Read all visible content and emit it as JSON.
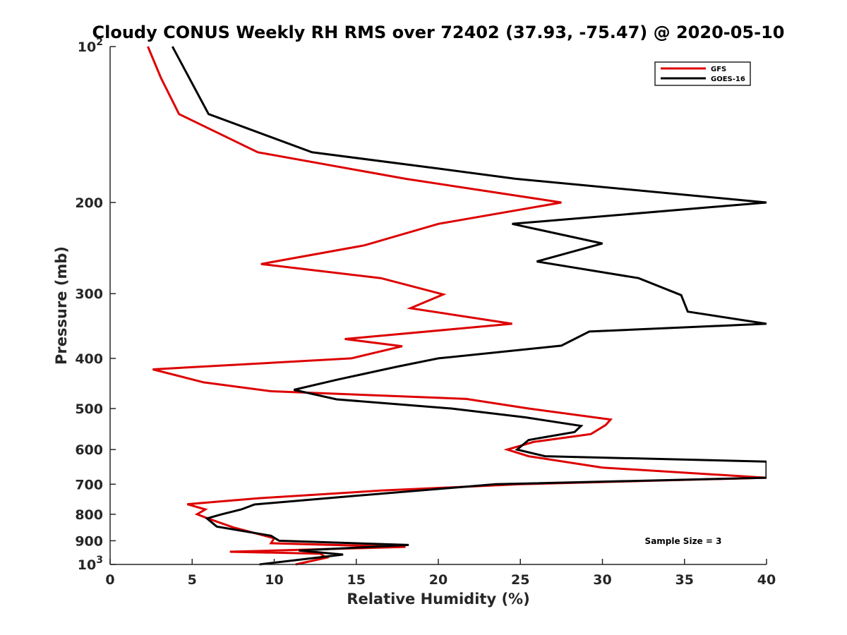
{
  "chart_data": {
    "type": "line",
    "title": "Cloudy CONUS Weekly RH RMS over 72402 (37.93, -75.47) @ 2020-05-10",
    "xlabel": "Relative Humidity (%)",
    "ylabel": "Pressure (mb)",
    "xlim": [
      0,
      40
    ],
    "ylim": [
      100,
      1000
    ],
    "y_scale": "log",
    "y_reversed": true,
    "grid": false,
    "legend_position": "top-right",
    "x_ticks": [
      0,
      5,
      10,
      15,
      20,
      25,
      30,
      35,
      40
    ],
    "x_tick_labels": [
      "0",
      "5",
      "10",
      "15",
      "20",
      "25",
      "30",
      "35",
      "40"
    ],
    "y_ticks": [
      100,
      200,
      300,
      400,
      500,
      600,
      700,
      800,
      900,
      1000
    ],
    "y_tick_labels": [
      {
        "base": "10",
        "exp": "2"
      },
      {
        "base": "200",
        "exp": ""
      },
      {
        "base": "300",
        "exp": ""
      },
      {
        "base": "400",
        "exp": ""
      },
      {
        "base": "500",
        "exp": ""
      },
      {
        "base": "600",
        "exp": ""
      },
      {
        "base": "700",
        "exp": ""
      },
      {
        "base": "800",
        "exp": ""
      },
      {
        "base": "900",
        "exp": ""
      },
      {
        "base": "10",
        "exp": "3"
      }
    ],
    "annotation": "Sample Size = 3",
    "series": [
      {
        "name": "GFS",
        "color": "#dd0000",
        "points": [
          [
            2.3,
            100
          ],
          [
            3.1,
            115
          ],
          [
            4.2,
            135
          ],
          [
            9.0,
            160
          ],
          [
            18.0,
            180
          ],
          [
            27.5,
            200
          ],
          [
            20.0,
            220
          ],
          [
            15.5,
            242
          ],
          [
            9.2,
            263
          ],
          [
            16.5,
            280
          ],
          [
            20.3,
            301
          ],
          [
            18.3,
            320
          ],
          [
            24.5,
            343
          ],
          [
            14.3,
            367
          ],
          [
            17.8,
            379
          ],
          [
            14.7,
            400
          ],
          [
            2.6,
            420
          ],
          [
            5.7,
            445
          ],
          [
            9.8,
            463
          ],
          [
            21.7,
            479
          ],
          [
            25.5,
            500
          ],
          [
            30.5,
            525
          ],
          [
            30.2,
            538
          ],
          [
            29.3,
            560
          ],
          [
            25.8,
            580
          ],
          [
            24.2,
            600
          ],
          [
            25.5,
            618
          ],
          [
            30.0,
            650
          ],
          [
            40.0,
            680
          ],
          [
            25.0,
            700
          ],
          [
            16.5,
            720
          ],
          [
            9.0,
            745
          ],
          [
            4.7,
            765
          ],
          [
            5.8,
            783
          ],
          [
            5.3,
            800
          ],
          [
            6.0,
            816
          ],
          [
            7.5,
            848
          ],
          [
            10.0,
            890
          ],
          [
            9.8,
            910
          ],
          [
            18.0,
            925
          ],
          [
            7.3,
            945
          ],
          [
            12.8,
            953
          ],
          [
            13.2,
            970
          ],
          [
            11.3,
            1000
          ]
        ]
      },
      {
        "name": "GOES-16",
        "color": "#000000",
        "points": [
          [
            3.8,
            100
          ],
          [
            6.0,
            135
          ],
          [
            12.3,
            160
          ],
          [
            20.0,
            172
          ],
          [
            24.7,
            180
          ],
          [
            40.0,
            200
          ],
          [
            24.5,
            220
          ],
          [
            30.0,
            240
          ],
          [
            26.0,
            260
          ],
          [
            32.2,
            280
          ],
          [
            34.8,
            302
          ],
          [
            35.2,
            325
          ],
          [
            40.0,
            343
          ],
          [
            29.2,
            355
          ],
          [
            27.5,
            378
          ],
          [
            20.0,
            400
          ],
          [
            17.5,
            415
          ],
          [
            13.8,
            440
          ],
          [
            11.2,
            460
          ],
          [
            13.8,
            480
          ],
          [
            20.8,
            500
          ],
          [
            25.3,
            520
          ],
          [
            28.7,
            540
          ],
          [
            28.3,
            555
          ],
          [
            25.5,
            575
          ],
          [
            24.8,
            600
          ],
          [
            26.5,
            618
          ],
          [
            40.0,
            633
          ],
          [
            40.0,
            680
          ],
          [
            23.5,
            700
          ],
          [
            14.3,
            740
          ],
          [
            8.8,
            766
          ],
          [
            8.0,
            783
          ],
          [
            6.8,
            800
          ],
          [
            5.9,
            815
          ],
          [
            6.5,
            845
          ],
          [
            9.8,
            880
          ],
          [
            10.3,
            900
          ],
          [
            18.2,
            917
          ],
          [
            11.5,
            940
          ],
          [
            14.2,
            957
          ],
          [
            9.1,
            1000
          ]
        ]
      }
    ]
  }
}
